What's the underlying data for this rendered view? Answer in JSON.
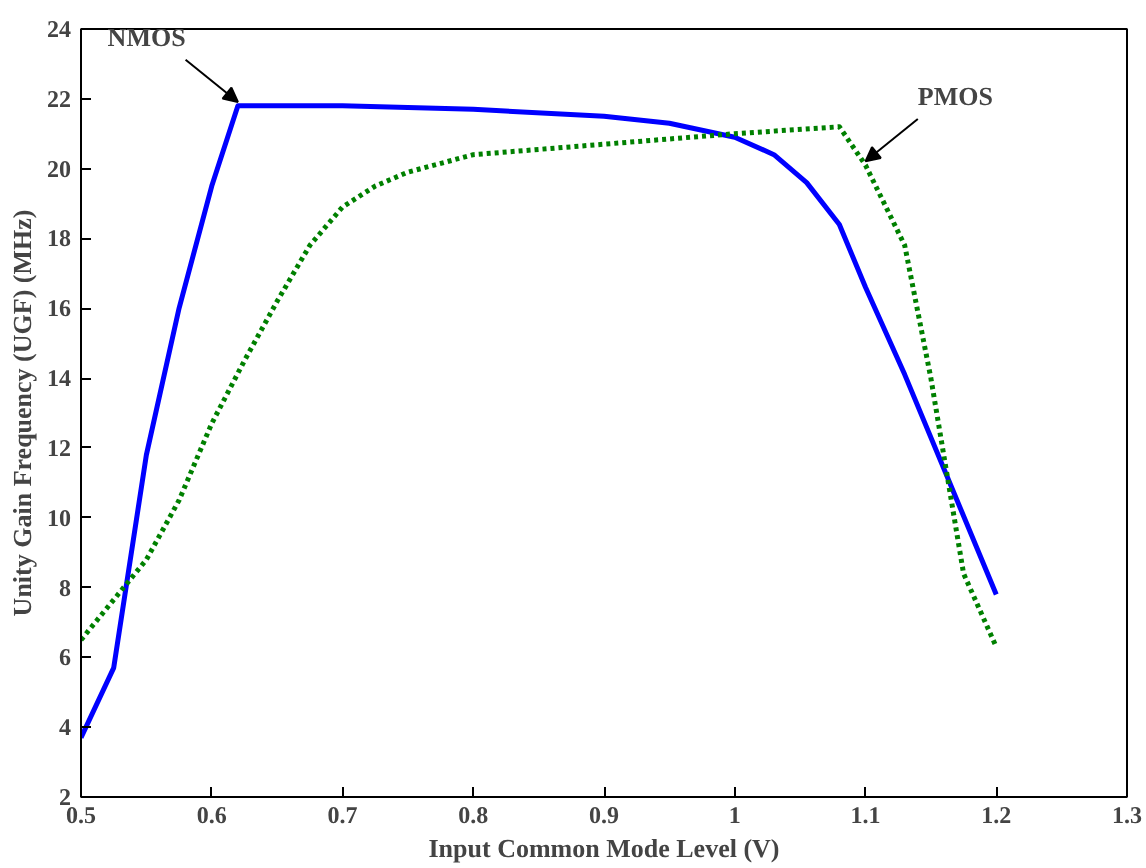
{
  "chart_data": {
    "type": "line",
    "xlabel": "Input Common Mode Level (V)",
    "ylabel": "Unity Gain Frequency (UGF) (MHz)",
    "xlim": [
      0.5,
      1.3
    ],
    "ylim": [
      2,
      24
    ],
    "xticks": [
      0.5,
      0.6,
      0.7,
      0.8,
      0.9,
      1,
      1.1,
      1.2,
      1.3
    ],
    "yticks": [
      2,
      4,
      6,
      8,
      10,
      12,
      14,
      16,
      18,
      20,
      22,
      24
    ],
    "grid": false,
    "series": [
      {
        "color": "#0000ff",
        "line_style": "solid",
        "x": [
          0.5,
          0.525,
          0.55,
          0.575,
          0.6,
          0.62,
          0.7,
          0.8,
          0.9,
          0.95,
          1.0,
          1.03,
          1.055,
          1.08,
          1.1,
          1.13,
          1.2
        ],
        "values": [
          3.7,
          5.7,
          11.8,
          16,
          19.5,
          21.8,
          21.8,
          21.7,
          21.5,
          21.3,
          20.9,
          20.4,
          19.6,
          18.4,
          16.6,
          14.1,
          7.8
        ]
      },
      {
        "color": "#008000",
        "line_style": "dotted",
        "x": [
          0.5,
          0.55,
          0.575,
          0.6,
          0.625,
          0.65,
          0.675,
          0.7,
          0.725,
          0.75,
          0.8,
          0.9,
          1.0,
          1.08,
          1.1,
          1.13,
          1.15,
          1.175,
          1.2
        ],
        "values": [
          6.5,
          8.8,
          10.5,
          12.7,
          14.5,
          16.2,
          17.8,
          18.9,
          19.5,
          19.9,
          20.4,
          20.7,
          21.0,
          21.2,
          20.1,
          17.8,
          14,
          8.4,
          6.3
        ]
      }
    ],
    "annotations": [
      {
        "text": "NMOS",
        "x": 0.62,
        "y": 21.8
      },
      {
        "text": "PMOS",
        "x": 1.1,
        "y": 20.1
      }
    ]
  }
}
